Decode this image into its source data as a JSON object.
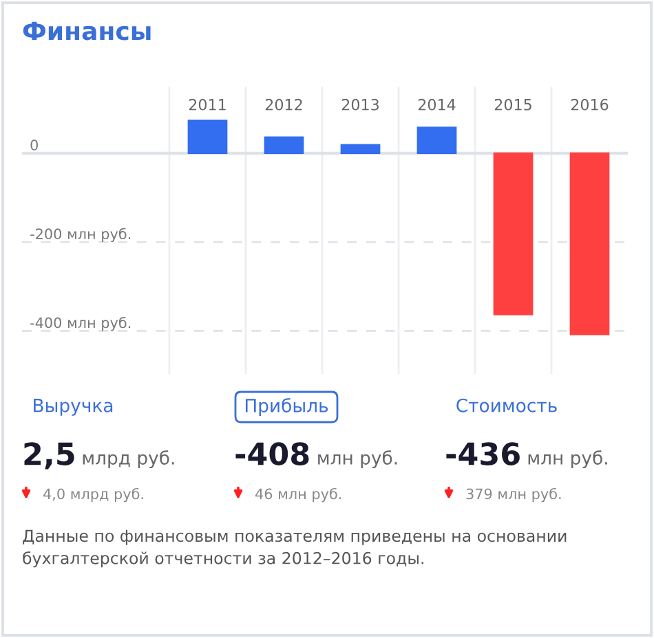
{
  "chart_data": [
    {
      "type": "bar",
      "title": "Финансы",
      "categories": [
        "2011",
        "2012",
        "2013",
        "2014",
        "2015",
        "2016"
      ],
      "values": [
        74,
        36,
        19,
        58,
        -363,
        -408
      ],
      "colors": [
        "#336df0",
        "#336df0",
        "#336df0",
        "#336df0",
        "#ff4040",
        "#ff4040"
      ],
      "ylim": [
        -497,
        150
      ],
      "yticks": [
        0,
        {
          "value": -200,
          "label": "-200 млн руб."
        },
        {
          "value": -400,
          "label": "-400 млн руб."
        }
      ],
      "grid": true,
      "legend": false
    },
    {
      "type": "other",
      "categories": [
        "Выручка",
        "Прибыль",
        "Стоимость"
      ],
      "annotations": [
        "2,5",
        "млрд руб.",
        "4,0 млрд руб.",
        "-408",
        "млн руб.",
        "46 млн руб.",
        "-436",
        "млн руб.",
        "379 млн руб.",
        "Данные по финансовым показателям приведены на основании бухгалтерской отчетности за 2012–2016 годы."
      ]
    }
  ]
}
